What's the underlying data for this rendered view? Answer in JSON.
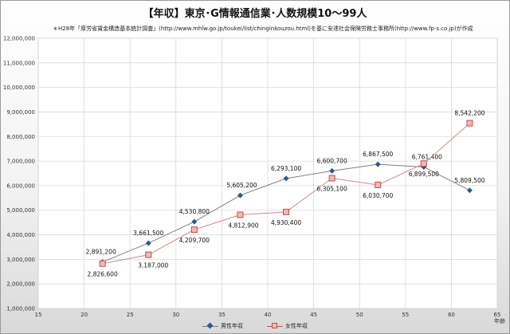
{
  "title": "【年収】東京･G情報通信業･人数規模10〜99人",
  "note": "＊H28年「厚労省賃金構造基本統計調査」(http://www.mhlw.go.jp/toukei/list/chinginkouzou.html)を基に安達社会保険労務士事務所(http://www.fp-s.co.jp)が作成",
  "chart_data": {
    "type": "line",
    "title": "【年収】東京･G情報通信業･人数規模10〜99人",
    "xlabel": "年齢",
    "ylabel": "",
    "xlim": [
      15,
      65
    ],
    "ylim": [
      1000000,
      12000000
    ],
    "x_ticks": [
      "15",
      "20",
      "25",
      "30",
      "35",
      "40",
      "45",
      "50",
      "55",
      "60",
      "65"
    ],
    "y_ticks": [
      "1,000,000",
      "2,000,000",
      "3,000,000",
      "4,000,000",
      "5,000,000",
      "6,000,000",
      "7,000,000",
      "8,000,000",
      "9,000,000",
      "10,000,000",
      "11,000,000",
      "12,000,000"
    ],
    "grid": true,
    "legend": "bottom",
    "series": [
      {
        "name": "男性年収",
        "color": "#2f5597",
        "marker": "diamond",
        "x": [
          22,
          27,
          32,
          37,
          42,
          47,
          52,
          57,
          62
        ],
        "values": [
          2891200,
          3661500,
          4530800,
          5605200,
          6293100,
          6600700,
          6867500,
          6761400,
          5809500
        ],
        "labels": [
          "2,891,200",
          "3,661,500",
          "4,530,800",
          "5,605,200",
          "6,293,100",
          "6,600,700",
          "6,867,500",
          "6,761,400",
          "5,809,500"
        ]
      },
      {
        "name": "女性年収",
        "color": "#c0504d",
        "marker": "square",
        "x": [
          22,
          27,
          32,
          37,
          42,
          47,
          52,
          57,
          62
        ],
        "values": [
          2826600,
          3187000,
          4209700,
          4812900,
          4930400,
          6305100,
          6030700,
          6899500,
          8542200
        ],
        "labels": [
          "2,826,600",
          "3,187,000",
          "4,209,700",
          "4,812,900",
          "4,930,400",
          "6,305,100",
          "6,030,700",
          "6,899,500",
          "8,542,200"
        ]
      }
    ]
  }
}
